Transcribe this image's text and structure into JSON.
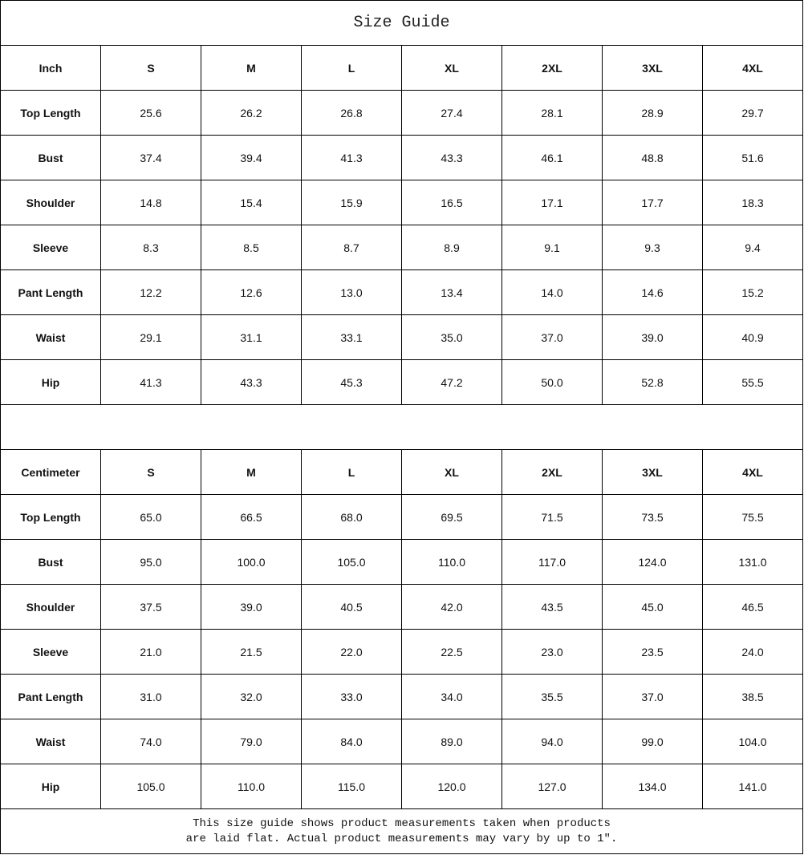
{
  "title": "Size Guide",
  "sizes": [
    "S",
    "M",
    "L",
    "XL",
    "2XL",
    "3XL",
    "4XL"
  ],
  "tables": [
    {
      "unit": "Inch",
      "rows": [
        {
          "label": "Top Length",
          "values": [
            "25.6",
            "26.2",
            "26.8",
            "27.4",
            "28.1",
            "28.9",
            "29.7"
          ]
        },
        {
          "label": "Bust",
          "values": [
            "37.4",
            "39.4",
            "41.3",
            "43.3",
            "46.1",
            "48.8",
            "51.6"
          ]
        },
        {
          "label": "Shoulder",
          "values": [
            "14.8",
            "15.4",
            "15.9",
            "16.5",
            "17.1",
            "17.7",
            "18.3"
          ]
        },
        {
          "label": "Sleeve",
          "values": [
            "8.3",
            "8.5",
            "8.7",
            "8.9",
            "9.1",
            "9.3",
            "9.4"
          ]
        },
        {
          "label": "Pant Length",
          "values": [
            "12.2",
            "12.6",
            "13.0",
            "13.4",
            "14.0",
            "14.6",
            "15.2"
          ]
        },
        {
          "label": "Waist",
          "values": [
            "29.1",
            "31.1",
            "33.1",
            "35.0",
            "37.0",
            "39.0",
            "40.9"
          ]
        },
        {
          "label": "Hip",
          "values": [
            "41.3",
            "43.3",
            "45.3",
            "47.2",
            "50.0",
            "52.8",
            "55.5"
          ]
        }
      ]
    },
    {
      "unit": "Centimeter",
      "rows": [
        {
          "label": "Top Length",
          "values": [
            "65.0",
            "66.5",
            "68.0",
            "69.5",
            "71.5",
            "73.5",
            "75.5"
          ]
        },
        {
          "label": "Bust",
          "values": [
            "95.0",
            "100.0",
            "105.0",
            "110.0",
            "117.0",
            "124.0",
            "131.0"
          ]
        },
        {
          "label": "Shoulder",
          "values": [
            "37.5",
            "39.0",
            "40.5",
            "42.0",
            "43.5",
            "45.0",
            "46.5"
          ]
        },
        {
          "label": "Sleeve",
          "values": [
            "21.0",
            "21.5",
            "22.0",
            "22.5",
            "23.0",
            "23.5",
            "24.0"
          ]
        },
        {
          "label": "Pant Length",
          "values": [
            "31.0",
            "32.0",
            "33.0",
            "34.0",
            "35.5",
            "37.0",
            "38.5"
          ]
        },
        {
          "label": "Waist",
          "values": [
            "74.0",
            "79.0",
            "84.0",
            "89.0",
            "94.0",
            "99.0",
            "104.0"
          ]
        },
        {
          "label": "Hip",
          "values": [
            "105.0",
            "110.0",
            "115.0",
            "120.0",
            "127.0",
            "134.0",
            "141.0"
          ]
        }
      ]
    }
  ],
  "note": {
    "line1": "This size guide shows product measurements taken when products",
    "line2": "are laid flat. Actual product measurements may vary by up to 1″."
  }
}
